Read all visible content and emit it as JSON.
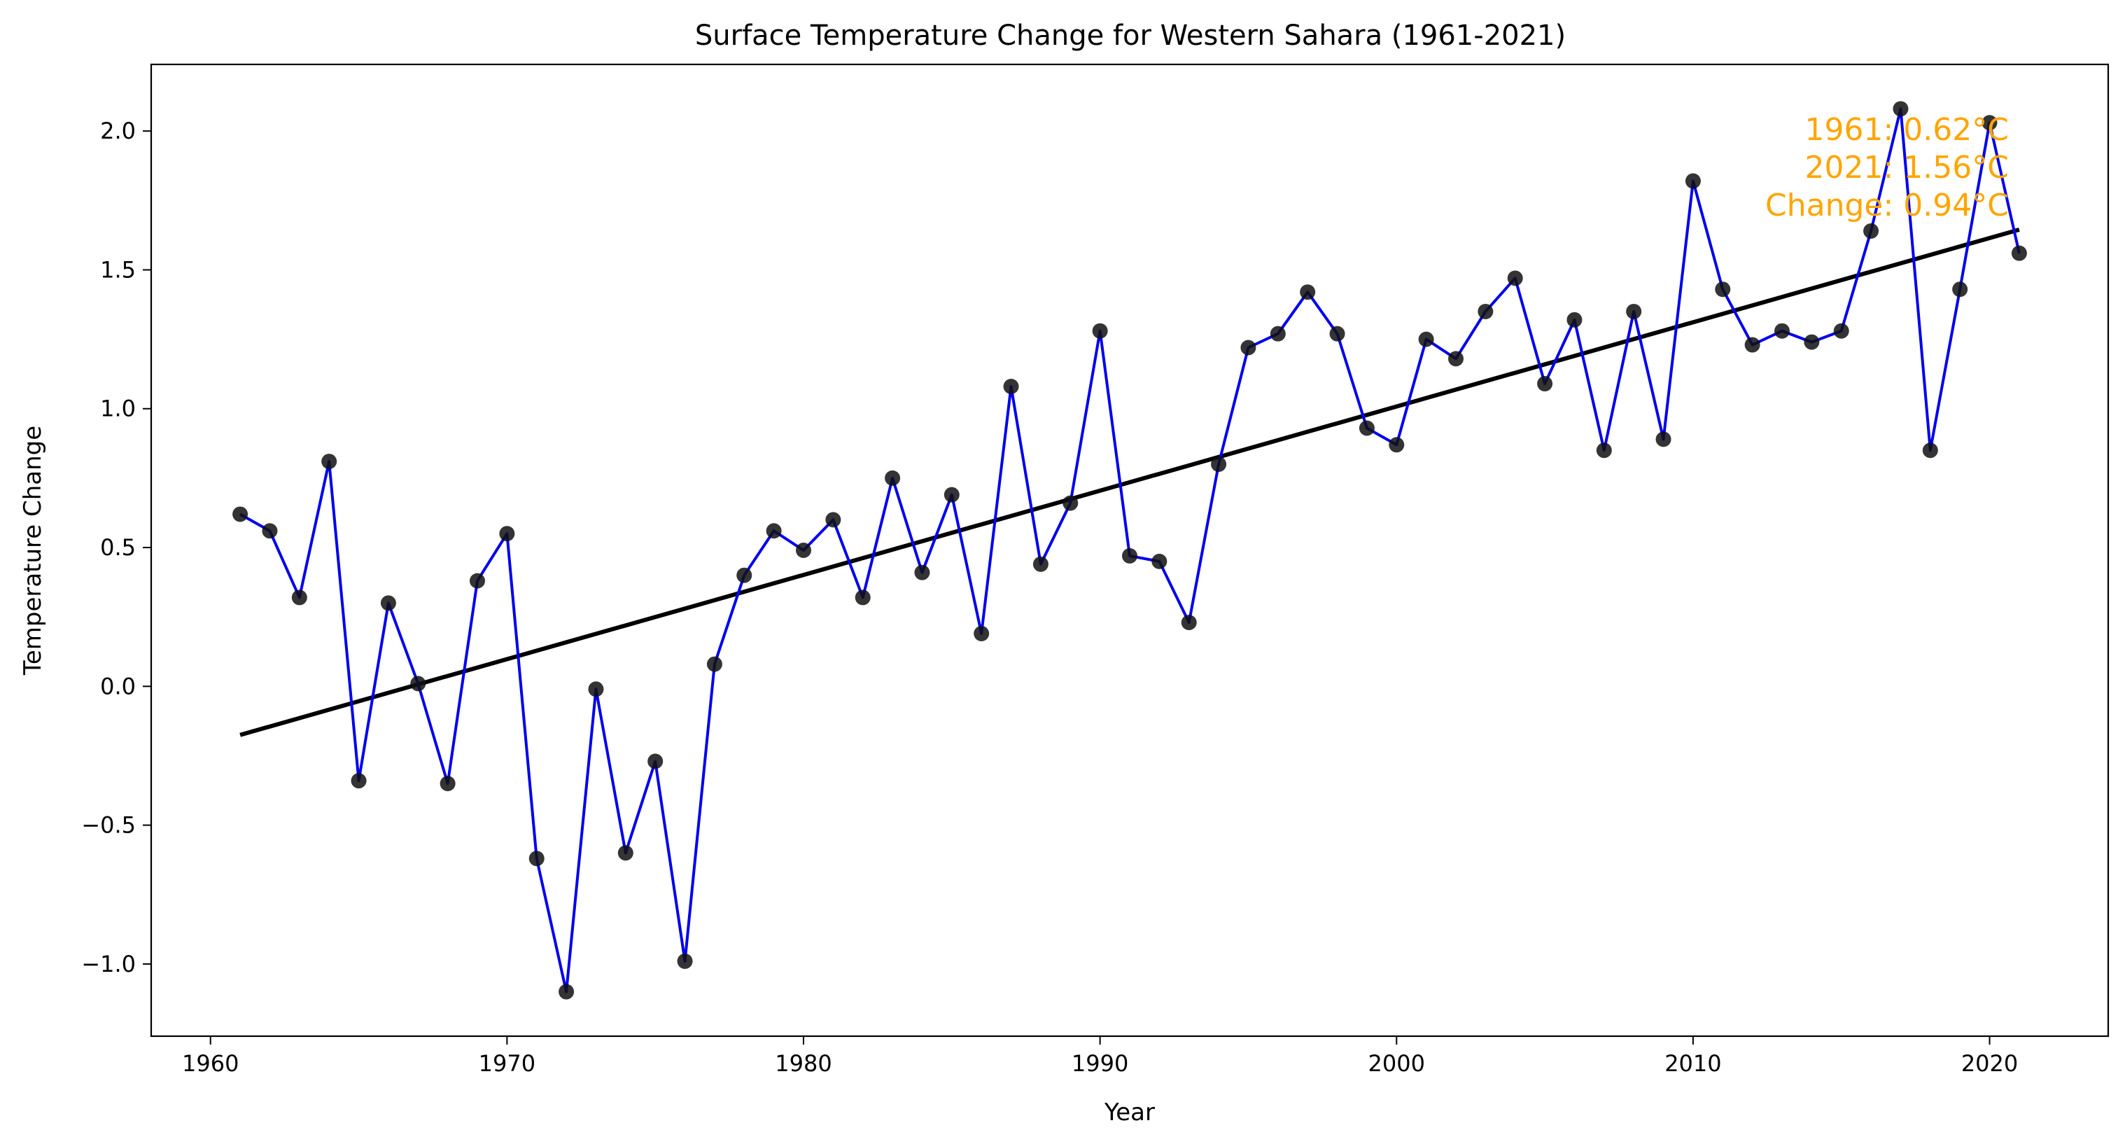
{
  "chart_data": {
    "type": "line",
    "title": "Surface Temperature Change for Western Sahara (1961-2021)",
    "xlabel": "Year",
    "ylabel": "Temperature Change",
    "xlim": [
      1958,
      2024
    ],
    "ylim": [
      -1.26,
      2.24
    ],
    "x_ticks": [
      1960,
      1970,
      1980,
      1990,
      2000,
      2010,
      2020
    ],
    "y_ticks": [
      -1.0,
      -0.5,
      0.0,
      0.5,
      1.0,
      1.5,
      2.0
    ],
    "y_tick_labels": [
      "−1.0",
      "−0.5",
      "0.0",
      "0.5",
      "1.0",
      "1.5",
      "2.0"
    ],
    "grid": false,
    "series": [
      {
        "line_color": "#0000ee",
        "marker_color": "#111111",
        "x": [
          1961,
          1962,
          1963,
          1964,
          1965,
          1966,
          1967,
          1968,
          1969,
          1970,
          1971,
          1972,
          1973,
          1974,
          1975,
          1976,
          1977,
          1978,
          1979,
          1980,
          1981,
          1982,
          1983,
          1984,
          1985,
          1986,
          1987,
          1988,
          1989,
          1990,
          1991,
          1992,
          1993,
          1994,
          1995,
          1996,
          1997,
          1998,
          1999,
          2000,
          2001,
          2002,
          2003,
          2004,
          2005,
          2006,
          2007,
          2008,
          2009,
          2010,
          2011,
          2012,
          2013,
          2014,
          2015,
          2016,
          2017,
          2018,
          2019,
          2020,
          2021
        ],
        "y": [
          0.62,
          0.56,
          0.32,
          0.81,
          -0.34,
          0.3,
          0.01,
          -0.35,
          0.38,
          0.55,
          -0.62,
          -1.1,
          -0.01,
          -0.6,
          -0.27,
          -0.99,
          0.08,
          0.4,
          0.56,
          0.49,
          0.6,
          0.32,
          0.75,
          0.41,
          0.69,
          0.19,
          1.08,
          0.44,
          0.66,
          1.28,
          0.47,
          0.45,
          0.23,
          0.8,
          1.22,
          1.27,
          1.42,
          1.27,
          0.93,
          0.87,
          1.25,
          1.18,
          1.35,
          1.47,
          1.09,
          1.32,
          0.85,
          1.35,
          0.89,
          1.82,
          1.43,
          1.23,
          1.28,
          1.24,
          1.28,
          1.64,
          2.08,
          0.85,
          1.43,
          2.03,
          1.56
        ]
      }
    ],
    "trend_line": {
      "color": "#000000",
      "x": [
        1961,
        2021
      ],
      "y": [
        -0.175,
        1.645
      ]
    },
    "annotations": {
      "color": "#FFA500",
      "line1": "1961: 0.62°C",
      "line2": "2021: 1.56°C",
      "line3": "Change: 0.94°C"
    }
  }
}
